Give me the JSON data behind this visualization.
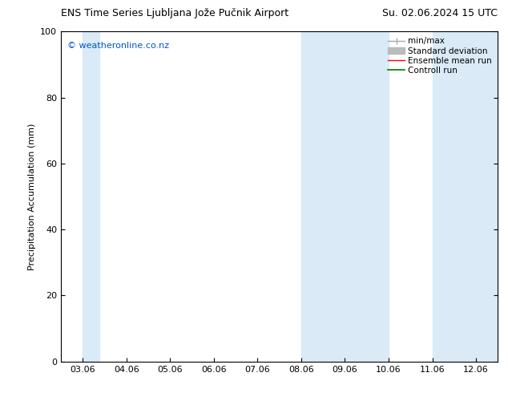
{
  "title_left": "ENS Time Series Ljubljana Jože Pučnik Airport",
  "title_right": "Su. 02.06.2024 15 UTC",
  "xlabel_ticks": [
    "03.06",
    "04.06",
    "05.06",
    "06.06",
    "07.06",
    "08.06",
    "09.06",
    "10.06",
    "11.06",
    "12.06"
  ],
  "ylabel": "Precipitation Accumulation (mm)",
  "ylim": [
    0,
    100
  ],
  "yticks": [
    0,
    20,
    40,
    60,
    80,
    100
  ],
  "watermark": "© weatheronline.co.nz",
  "watermark_color": "#0055cc",
  "background_color": "#ffffff",
  "plot_bg_color": "#ffffff",
  "shaded_color": "#daeaf7",
  "shaded_bands_data": [
    [
      0.0,
      0.38
    ],
    [
      5.0,
      7.0
    ],
    [
      8.0,
      9.6
    ]
  ],
  "legend_items": [
    {
      "label": "min/max",
      "color": "#aaaaaa",
      "type": "line",
      "linewidth": 1.0
    },
    {
      "label": "Standard deviation",
      "color": "#bbbbbb",
      "type": "patch"
    },
    {
      "label": "Ensemble mean run",
      "color": "#ff0000",
      "type": "line",
      "linewidth": 1.0
    },
    {
      "label": "Controll run",
      "color": "#007700",
      "type": "line",
      "linewidth": 1.2
    }
  ],
  "xlim": [
    -0.5,
    9.5
  ],
  "tick_fontsize": 8,
  "ylabel_fontsize": 8,
  "title_fontsize": 9,
  "watermark_fontsize": 8
}
